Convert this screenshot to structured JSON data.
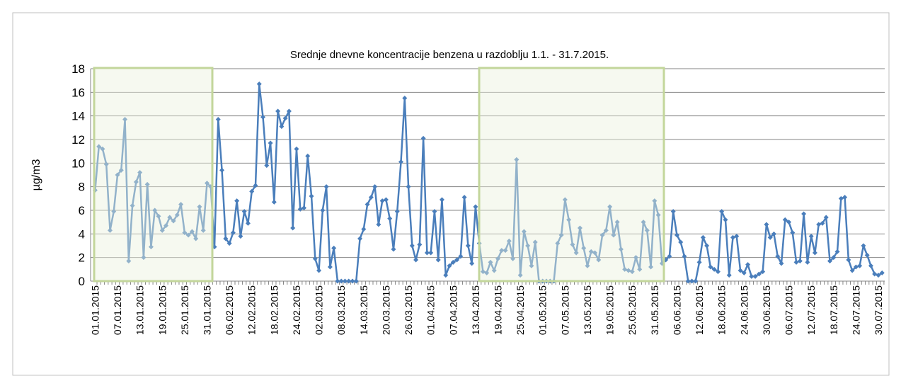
{
  "chart_data": {
    "type": "line",
    "title": "Srednje dnevne koncentracije benzena u razdoblju 1.1. - 31.7.2015.",
    "y_label": "µg/m3",
    "categories": [
      "01.01.2015",
      null,
      null,
      null,
      null,
      null,
      "07.01.2015",
      null,
      null,
      null,
      null,
      null,
      "13.01.2015",
      null,
      null,
      null,
      null,
      null,
      "19.01.2015",
      null,
      null,
      null,
      null,
      null,
      "25.01.2015",
      null,
      null,
      null,
      null,
      null,
      "31.01.2015",
      null,
      null,
      null,
      null,
      null,
      "06.02.2015",
      null,
      null,
      null,
      null,
      null,
      "12.02.2015",
      null,
      null,
      null,
      null,
      null,
      "18.02.2015",
      null,
      null,
      null,
      null,
      null,
      "24.02.2015",
      null,
      null,
      null,
      null,
      null,
      "02.03.2015",
      null,
      null,
      null,
      null,
      null,
      "08.03.2015",
      null,
      null,
      null,
      null,
      null,
      "14.03.2015",
      null,
      null,
      null,
      null,
      null,
      "20.03.2015",
      null,
      null,
      null,
      null,
      null,
      "26.03.2015",
      null,
      null,
      null,
      null,
      null,
      "01.04.2015",
      null,
      null,
      null,
      null,
      null,
      "07.04.2015",
      null,
      null,
      null,
      null,
      null,
      "13.04.2015",
      null,
      null,
      null,
      null,
      null,
      "19.04.2015",
      null,
      null,
      null,
      null,
      null,
      "25.04.2015",
      null,
      null,
      null,
      null,
      null,
      "01.05.2015",
      null,
      null,
      null,
      null,
      null,
      "07.05.2015",
      null,
      null,
      null,
      null,
      null,
      "13.05.2015",
      null,
      null,
      null,
      null,
      null,
      "19.05.2015",
      null,
      null,
      null,
      null,
      null,
      "25.05.2015",
      null,
      null,
      null,
      null,
      null,
      "31.05.2015",
      null,
      null,
      null,
      null,
      null,
      "06.06.2015",
      null,
      null,
      null,
      null,
      null,
      "12.06.2015",
      null,
      null,
      null,
      null,
      null,
      "18.06.2015",
      null,
      null,
      null,
      null,
      null,
      "24.06.2015",
      null,
      null,
      null,
      null,
      null,
      "30.06.2015",
      null,
      null,
      null,
      null,
      null,
      "06.07.2015",
      null,
      null,
      null,
      null,
      null,
      "12.07.2015",
      null,
      null,
      null,
      null,
      null,
      "18.07.2015",
      null,
      null,
      null,
      null,
      null,
      "24.07.2015",
      null,
      null,
      null,
      null,
      null,
      "30.07.2015",
      null
    ],
    "series": [
      {
        "name": "benzen",
        "color": "#4a7ebb",
        "values": [
          7.7,
          11.4,
          11.2,
          9.9,
          4.3,
          5.9,
          9.0,
          9.4,
          13.7,
          1.7,
          6.4,
          8.4,
          9.2,
          2.0,
          8.2,
          2.9,
          6.0,
          5.5,
          4.3,
          4.7,
          5.4,
          5.1,
          5.6,
          6.5,
          4.1,
          3.9,
          4.2,
          3.6,
          6.3,
          4.3,
          8.3,
          8.0,
          2.9,
          13.7,
          9.4,
          3.6,
          3.2,
          4.1,
          6.8,
          3.8,
          5.9,
          4.9,
          7.6,
          8.1,
          16.7,
          13.9,
          9.8,
          11.7,
          6.7,
          14.4,
          13.1,
          13.8,
          14.4,
          4.5,
          11.2,
          6.1,
          6.2,
          10.6,
          7.2,
          1.9,
          0.9,
          6.0,
          8.0,
          1.2,
          2.8,
          0,
          0,
          0,
          0,
          0,
          0,
          3.6,
          4.4,
          6.5,
          7.1,
          8.0,
          4.8,
          6.8,
          6.9,
          5.3,
          2.7,
          5.9,
          10.1,
          15.5,
          8.0,
          3.0,
          1.8,
          3.1,
          12.1,
          2.4,
          2.4,
          5.9,
          1.8,
          6.9,
          0.5,
          1.3,
          1.6,
          1.8,
          2.1,
          7.1,
          3.0,
          1.5,
          6.3,
          3.2,
          0.8,
          0.7,
          1.6,
          0.9,
          1.9,
          2.6,
          2.6,
          3.4,
          1.9,
          10.3,
          0.5,
          4.2,
          3.0,
          1.3,
          3.3,
          0,
          0,
          0,
          0,
          0,
          3.2,
          3.9,
          6.9,
          5.2,
          3.1,
          2.4,
          4.5,
          2.8,
          1.3,
          2.5,
          2.4,
          1.8,
          3.9,
          4.3,
          6.3,
          3.9,
          5.0,
          2.7,
          1.0,
          0.9,
          0.8,
          2.0,
          1.0,
          5.0,
          4.3,
          1.2,
          6.8,
          5.6,
          1.5,
          1.8,
          2.1,
          5.9,
          3.9,
          3.3,
          2.1,
          0,
          0,
          0,
          1.6,
          3.7,
          3.0,
          1.2,
          1.0,
          0.8,
          5.9,
          5.2,
          0.5,
          3.7,
          3.8,
          0.9,
          0.7,
          1.4,
          0.4,
          0.4,
          0.6,
          0.8,
          4.8,
          3.7,
          4.0,
          2.1,
          1.5,
          5.2,
          5.0,
          4.1,
          1.6,
          1.7,
          5.7,
          1.6,
          3.8,
          2.4,
          4.8,
          4.9,
          5.4,
          1.7,
          2.0,
          2.5,
          7.0,
          7.1,
          1.8,
          0.9,
          1.2,
          1.3,
          3.0,
          2.2,
          1.3,
          0.6,
          0.5,
          0.7
        ]
      }
    ],
    "ylim": [
      0,
      18
    ],
    "yticks": [
      0,
      2,
      4,
      6,
      8,
      10,
      12,
      14,
      16,
      18
    ],
    "grid": true
  }
}
